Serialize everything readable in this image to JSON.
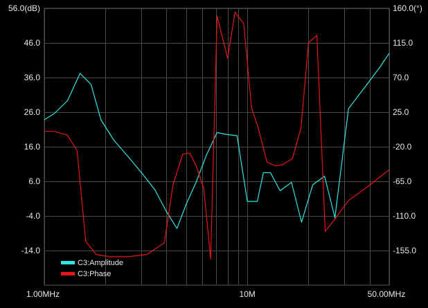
{
  "chart_data": {
    "type": "line",
    "x_scale": "log",
    "x_unit": "MHz",
    "x_range": [
      1,
      50
    ],
    "x_tick_labels": [
      {
        "value": 1,
        "label": "1.00MHz"
      },
      {
        "value": 10,
        "label": "10M"
      },
      {
        "value": 50,
        "label": "50.00MHz"
      }
    ],
    "left_axis": {
      "range": [
        -24,
        56
      ],
      "ticks": [
        56,
        46,
        36,
        26,
        16,
        6,
        -4,
        -14
      ],
      "tick_labels": [
        "56.0(dB)",
        "46.0",
        "36.0",
        "26.0",
        "16.0",
        "6.0",
        "-4.0",
        "-14.0"
      ]
    },
    "right_axis": {
      "range": [
        -200,
        160
      ],
      "ticks": [
        160,
        115,
        70,
        25,
        -20,
        -65,
        -110,
        -155
      ],
      "tick_labels": [
        "160.0(°)",
        "115.0",
        "70.0",
        "25.0",
        "-20.0",
        "-65.0",
        "-110.0",
        "-155.0"
      ]
    },
    "grid": true,
    "legend_position": "bottom-left",
    "series": [
      {
        "name": "C3:Amplitude",
        "color": "#2fe6e6",
        "axis": "left",
        "x": [
          1.0,
          1.12,
          1.3,
          1.5,
          1.7,
          1.9,
          2.2,
          2.6,
          3.0,
          3.5,
          4.0,
          4.5,
          5.0,
          5.6,
          6.3,
          7.1,
          8.0,
          8.9,
          10.0,
          11.2,
          12.0,
          13.0,
          14.5,
          16.5,
          18.5,
          21.0,
          24.0,
          27.0,
          31.5,
          35.5,
          40.0,
          45.0,
          50.0
        ],
        "y": [
          23.8,
          25.6,
          29.3,
          37.2,
          34.0,
          23.8,
          17.9,
          13.0,
          8.6,
          3.6,
          -2.8,
          -7.6,
          -0.6,
          5.8,
          13.7,
          20.1,
          19.5,
          19.2,
          0.2,
          0.2,
          8.5,
          8.5,
          3.3,
          5.7,
          -5.8,
          5.0,
          7.5,
          -4.5,
          27.0,
          31.0,
          35.0,
          39.0,
          43.0
        ]
      },
      {
        "name": "C3:Phase",
        "color": "#e81616",
        "axis": "right",
        "x": [
          1.0,
          1.12,
          1.3,
          1.45,
          1.6,
          1.8,
          2.1,
          2.6,
          3.2,
          3.9,
          4.3,
          4.8,
          5.2,
          5.6,
          6.1,
          6.6,
          7.1,
          8.0,
          8.7,
          9.6,
          10.5,
          11.3,
          12.5,
          13.8,
          15.0,
          16.7,
          18.4,
          20.0,
          22.0,
          24.2,
          26.8,
          31.5,
          35.5,
          40.0,
          44.7,
          50.0
        ],
        "y": [
          0,
          0,
          -5,
          -25,
          -143,
          -160,
          -163,
          -163,
          -160,
          -145,
          -70,
          -30,
          -28,
          -45,
          -74,
          -166,
          150,
          95,
          155,
          140,
          30,
          5,
          -40,
          -45,
          -43,
          -35,
          5,
          115,
          125,
          -130,
          -115,
          -90,
          -80,
          -70,
          -60,
          -50
        ]
      }
    ]
  }
}
